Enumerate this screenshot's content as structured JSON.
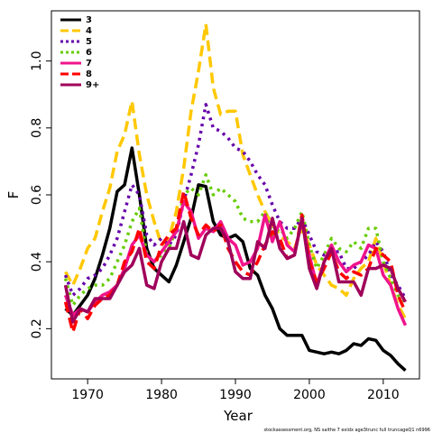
{
  "chart_data": {
    "type": "line",
    "xlabel": "Year",
    "ylabel": "F",
    "note": "stockassessment.org, NS saithe 7 exidx age3trunc full truncageQ1 n6996",
    "x": [
      1967,
      1968,
      1969,
      1970,
      1971,
      1972,
      1973,
      1974,
      1975,
      1976,
      1977,
      1978,
      1979,
      1980,
      1981,
      1982,
      1983,
      1984,
      1985,
      1986,
      1987,
      1988,
      1989,
      1990,
      1991,
      1992,
      1993,
      1994,
      1995,
      1996,
      1997,
      1998,
      1999,
      2000,
      2001,
      2002,
      2003,
      2004,
      2005,
      2006,
      2007,
      2008,
      2009,
      2010,
      2011,
      2012,
      2013
    ],
    "xlim": [
      1965.1,
      2014.9
    ],
    "xticks": [
      1970,
      1980,
      1990,
      2000,
      2010
    ],
    "ylim": [
      0.05,
      1.15
    ],
    "yticks": [
      0.2,
      0.4,
      0.6,
      0.8,
      {
        "value": 1,
        "label": "1.0"
      }
    ],
    "legend": "top-left",
    "series": [
      {
        "name": "3",
        "color": "#000000",
        "dash": "solid",
        "values": [
          0.26,
          0.24,
          0.27,
          0.3,
          0.35,
          0.42,
          0.5,
          0.61,
          0.63,
          0.74,
          0.6,
          0.44,
          0.38,
          0.36,
          0.34,
          0.39,
          0.46,
          0.53,
          0.63,
          0.625,
          0.52,
          0.48,
          0.47,
          0.48,
          0.46,
          0.38,
          0.36,
          0.3,
          0.26,
          0.2,
          0.18,
          0.18,
          0.18,
          0.135,
          0.13,
          0.125,
          0.13,
          0.125,
          0.135,
          0.155,
          0.15,
          0.17,
          0.165,
          0.135,
          0.12,
          0.095,
          0.075
        ]
      },
      {
        "name": "4",
        "color": "#FFC800",
        "dash": "dashed",
        "values": [
          0.37,
          0.33,
          0.38,
          0.44,
          0.47,
          0.55,
          0.62,
          0.73,
          0.78,
          0.88,
          0.72,
          0.6,
          0.52,
          0.45,
          0.47,
          0.55,
          0.68,
          0.85,
          0.97,
          1.11,
          0.92,
          0.84,
          0.85,
          0.85,
          0.72,
          0.66,
          0.6,
          0.55,
          0.51,
          0.48,
          0.46,
          0.44,
          0.5,
          0.45,
          0.39,
          0.36,
          0.33,
          0.32,
          0.3,
          0.35,
          0.38,
          0.4,
          0.47,
          0.4,
          0.33,
          0.27,
          0.23
        ]
      },
      {
        "name": "5",
        "color": "#6600AA",
        "dash": "dotted",
        "values": [
          0.36,
          0.3,
          0.32,
          0.35,
          0.36,
          0.38,
          0.42,
          0.47,
          0.55,
          0.63,
          0.6,
          0.48,
          0.45,
          0.47,
          0.45,
          0.48,
          0.58,
          0.66,
          0.75,
          0.87,
          0.8,
          0.79,
          0.77,
          0.74,
          0.73,
          0.7,
          0.66,
          0.63,
          0.57,
          0.52,
          0.5,
          0.5,
          0.53,
          0.48,
          0.43,
          0.42,
          0.43,
          0.43,
          0.38,
          0.38,
          0.4,
          0.42,
          0.46,
          0.43,
          0.36,
          0.33,
          0.29
        ]
      },
      {
        "name": "6",
        "color": "#66CC00",
        "dash": "dotted",
        "values": [
          0.35,
          0.27,
          0.3,
          0.32,
          0.33,
          0.33,
          0.35,
          0.4,
          0.45,
          0.52,
          0.56,
          0.42,
          0.4,
          0.42,
          0.44,
          0.5,
          0.6,
          0.62,
          0.6,
          0.66,
          0.6,
          0.62,
          0.6,
          0.58,
          0.53,
          0.52,
          0.52,
          0.55,
          0.48,
          0.5,
          0.47,
          0.5,
          0.55,
          0.45,
          0.38,
          0.42,
          0.47,
          0.44,
          0.43,
          0.46,
          0.44,
          0.5,
          0.5,
          0.4,
          0.35,
          0.3,
          0.28
        ]
      },
      {
        "name": "7",
        "color": "#F0148C",
        "dash": "solid",
        "values": [
          0.3,
          0.24,
          0.26,
          0.25,
          0.28,
          0.3,
          0.31,
          0.33,
          0.38,
          0.45,
          0.48,
          0.42,
          0.4,
          0.43,
          0.46,
          0.49,
          0.58,
          0.55,
          0.47,
          0.5,
          0.49,
          0.52,
          0.47,
          0.45,
          0.39,
          0.4,
          0.44,
          0.54,
          0.46,
          0.52,
          0.45,
          0.43,
          0.52,
          0.42,
          0.33,
          0.4,
          0.45,
          0.4,
          0.37,
          0.39,
          0.4,
          0.45,
          0.44,
          0.36,
          0.33,
          0.26,
          0.21
        ]
      },
      {
        "name": "8",
        "color": "#FF0000",
        "dash": "dashed",
        "values": [
          0.28,
          0.19,
          0.26,
          0.23,
          0.27,
          0.29,
          0.3,
          0.33,
          0.4,
          0.43,
          0.5,
          0.4,
          0.38,
          0.45,
          0.48,
          0.5,
          0.61,
          0.53,
          0.48,
          0.51,
          0.49,
          0.51,
          0.44,
          0.4,
          0.37,
          0.36,
          0.4,
          0.45,
          0.49,
          0.47,
          0.41,
          0.42,
          0.54,
          0.4,
          0.34,
          0.38,
          0.43,
          0.37,
          0.35,
          0.37,
          0.36,
          0.38,
          0.44,
          0.42,
          0.4,
          0.3,
          0.25
        ]
      },
      {
        "name": "9+",
        "color": "#A0005A",
        "dash": "solid",
        "values": [
          0.33,
          0.22,
          0.26,
          0.25,
          0.29,
          0.29,
          0.29,
          0.33,
          0.37,
          0.39,
          0.44,
          0.33,
          0.32,
          0.4,
          0.44,
          0.44,
          0.52,
          0.42,
          0.41,
          0.48,
          0.5,
          0.5,
          0.46,
          0.37,
          0.35,
          0.35,
          0.46,
          0.44,
          0.53,
          0.44,
          0.41,
          0.42,
          0.53,
          0.38,
          0.32,
          0.4,
          0.44,
          0.34,
          0.34,
          0.34,
          0.3,
          0.38,
          0.38,
          0.39,
          0.38,
          0.32,
          0.28
        ]
      }
    ]
  }
}
